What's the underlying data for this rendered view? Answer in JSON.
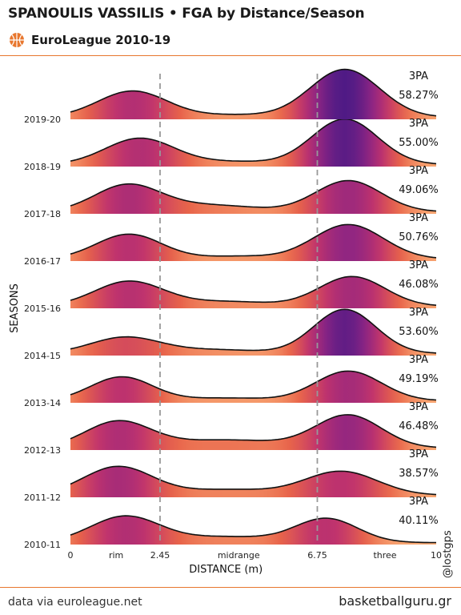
{
  "header": {
    "title": "SPANOULIS VASSILIS • FGA by Distance/Season",
    "subtitle": "EuroLeague 2010-19",
    "logo_icon": "euroleague-basketball-icon",
    "accent_color": "#e8772e"
  },
  "footer": {
    "source": "data via euroleague.net",
    "site": "basketballguru.gr",
    "handle": "@lostgps"
  },
  "chart_data": {
    "type": "ridgeline",
    "title": "SPANOULIS VASSILIS • FGA by Distance/Season",
    "subtitle": "EuroLeague 2010-19",
    "xlabel": "DISTANCE (m)",
    "ylabel": "SEASONS",
    "xlim": [
      0,
      10
    ],
    "x_ticks": [
      {
        "value": 0,
        "label": "0"
      },
      {
        "value": 1.25,
        "label": "rim"
      },
      {
        "value": 2.45,
        "label": "2.45"
      },
      {
        "value": 4.6,
        "label": "midrange"
      },
      {
        "value": 6.75,
        "label": "6.75"
      },
      {
        "value": 8.6,
        "label": "three"
      },
      {
        "value": 10,
        "label": "10"
      }
    ],
    "reference_lines": [
      2.45,
      6.75
    ],
    "color_scale": [
      "#fdb97d",
      "#e8644a",
      "#c0336d",
      "#8b2484",
      "#4d1a85"
    ],
    "series": [
      {
        "name": "2019-20",
        "label": "3PA",
        "pct": "58.27%",
        "peaks": [
          {
            "mu": 1.7,
            "sigma": 0.95,
            "h": 0.55
          },
          {
            "mu": 7.5,
            "sigma": 0.95,
            "h": 1.0
          },
          {
            "mu": 4.5,
            "sigma": 1.0,
            "h": 0.05
          }
        ]
      },
      {
        "name": "2018-19",
        "label": "3PA",
        "pct": "55.00%",
        "peaks": [
          {
            "mu": 1.9,
            "sigma": 0.95,
            "h": 0.55
          },
          {
            "mu": 7.5,
            "sigma": 0.9,
            "h": 0.95
          },
          {
            "mu": 4.5,
            "sigma": 1.0,
            "h": 0.06
          }
        ]
      },
      {
        "name": "2017-18",
        "label": "3PA",
        "pct": "49.06%",
        "peaks": [
          {
            "mu": 1.55,
            "sigma": 0.9,
            "h": 0.55
          },
          {
            "mu": 7.6,
            "sigma": 0.9,
            "h": 0.65
          },
          {
            "mu": 3.8,
            "sigma": 1.3,
            "h": 0.14
          }
        ]
      },
      {
        "name": "2016-17",
        "label": "3PA",
        "pct": "50.76%",
        "peaks": [
          {
            "mu": 1.6,
            "sigma": 0.9,
            "h": 0.52
          },
          {
            "mu": 7.6,
            "sigma": 0.95,
            "h": 0.72
          },
          {
            "mu": 4.6,
            "sigma": 1.0,
            "h": 0.06
          }
        ]
      },
      {
        "name": "2015-16",
        "label": "3PA",
        "pct": "46.08%",
        "peaks": [
          {
            "mu": 1.6,
            "sigma": 0.95,
            "h": 0.52
          },
          {
            "mu": 7.7,
            "sigma": 0.9,
            "h": 0.62
          },
          {
            "mu": 4.3,
            "sigma": 1.2,
            "h": 0.1
          }
        ]
      },
      {
        "name": "2014-15",
        "label": "3PA",
        "pct": "53.60%",
        "peaks": [
          {
            "mu": 1.5,
            "sigma": 0.95,
            "h": 0.34
          },
          {
            "mu": 7.5,
            "sigma": 0.85,
            "h": 0.92
          },
          {
            "mu": 4.0,
            "sigma": 1.2,
            "h": 0.08
          }
        ]
      },
      {
        "name": "2013-14",
        "label": "3PA",
        "pct": "49.19%",
        "peaks": [
          {
            "mu": 1.4,
            "sigma": 0.85,
            "h": 0.5
          },
          {
            "mu": 7.6,
            "sigma": 0.9,
            "h": 0.62
          },
          {
            "mu": 4.3,
            "sigma": 1.1,
            "h": 0.06
          }
        ]
      },
      {
        "name": "2012-13",
        "label": "3PA",
        "pct": "46.48%",
        "peaks": [
          {
            "mu": 1.3,
            "sigma": 0.9,
            "h": 0.55
          },
          {
            "mu": 7.6,
            "sigma": 0.9,
            "h": 0.68
          },
          {
            "mu": 4.3,
            "sigma": 1.5,
            "h": 0.17
          }
        ]
      },
      {
        "name": "2011-12",
        "label": "3PA",
        "pct": "38.57%",
        "peaks": [
          {
            "mu": 1.3,
            "sigma": 0.95,
            "h": 0.6
          },
          {
            "mu": 7.4,
            "sigma": 1.0,
            "h": 0.5
          },
          {
            "mu": 4.3,
            "sigma": 1.2,
            "h": 0.12
          }
        ]
      },
      {
        "name": "2010-11",
        "label": "3PA",
        "pct": "40.11%",
        "peaks": [
          {
            "mu": 1.5,
            "sigma": 0.95,
            "h": 0.55
          },
          {
            "mu": 7.0,
            "sigma": 0.85,
            "h": 0.5
          },
          {
            "mu": 4.3,
            "sigma": 1.2,
            "h": 0.12
          }
        ]
      }
    ]
  }
}
